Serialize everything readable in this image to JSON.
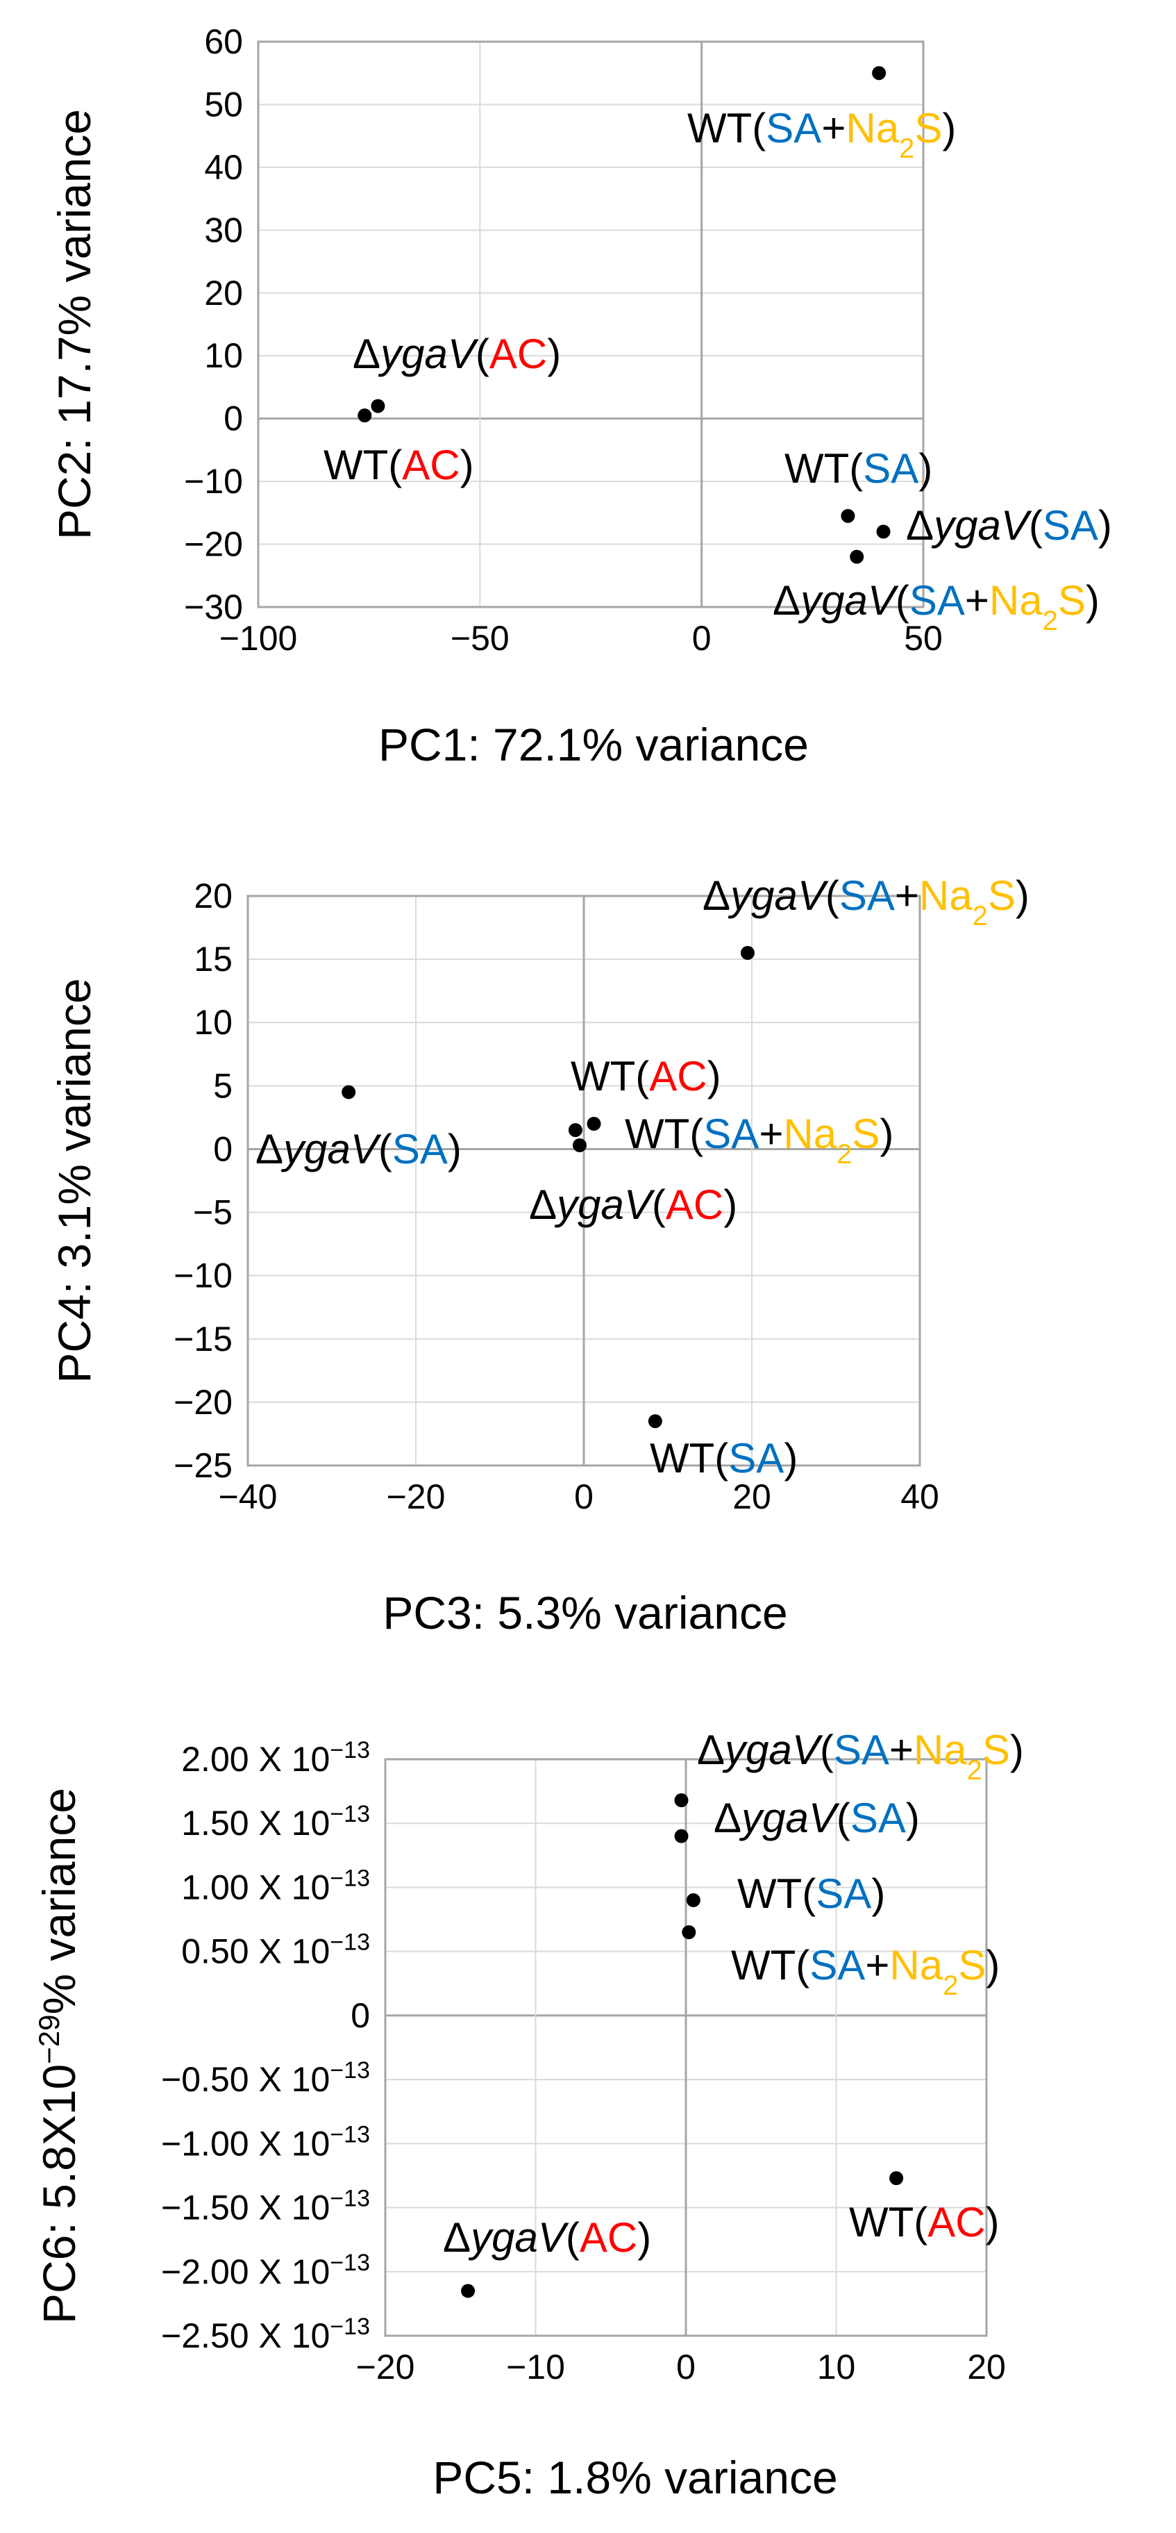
{
  "chart_data": [
    {
      "type": "scatter",
      "xlabel": "PC1: 72.1% variance",
      "ylabel": "PC2: 17.7% variance",
      "xlim": [
        -100,
        50
      ],
      "ylim": [
        -30,
        60
      ],
      "x_ticks": [
        "−100",
        "−50",
        "0",
        "50"
      ],
      "y_ticks": [
        "60",
        "50",
        "40",
        "30",
        "20",
        "10",
        "0",
        "−10",
        "−20",
        "−30"
      ],
      "points": [
        {
          "sample": "WT(SA+Na2S)",
          "x": 40,
          "y": 55
        },
        {
          "sample": "ΔygaV(AC)",
          "x": -73,
          "y": 2
        },
        {
          "sample": "WT(AC)",
          "x": -76,
          "y": 0.5
        },
        {
          "sample": "WT(SA)",
          "x": 33,
          "y": -15.5
        },
        {
          "sample": "ΔygaV(SA)",
          "x": 41,
          "y": -18
        },
        {
          "sample": "ΔygaV(SA+Na2S)",
          "x": 35,
          "y": -22
        }
      ]
    },
    {
      "type": "scatter",
      "xlabel": "PC3: 5.3% variance",
      "ylabel": "PC4: 3.1% variance",
      "xlim": [
        -40,
        40
      ],
      "ylim": [
        -25,
        20
      ],
      "x_ticks": [
        "−40",
        "−20",
        "0",
        "20",
        "40"
      ],
      "y_ticks": [
        "20",
        "15",
        "10",
        "5",
        "0",
        "−5",
        "−10",
        "−15",
        "−20",
        "−25"
      ],
      "points": [
        {
          "sample": "ΔygaV(SA+Na2S)",
          "x": 19.5,
          "y": 15.5
        },
        {
          "sample": "ΔygaV(SA)",
          "x": -28,
          "y": 4.5
        },
        {
          "sample": "WT(AC)",
          "x": -1,
          "y": 1.5
        },
        {
          "sample": "WT(SA+Na2S)",
          "x": 1.2,
          "y": 2
        },
        {
          "sample": "ΔygaV(AC)",
          "x": -0.5,
          "y": 0.3
        },
        {
          "sample": "WT(SA)",
          "x": 8.5,
          "y": -21.5
        }
      ]
    },
    {
      "type": "scatter",
      "xlabel": "PC5: 1.8% variance",
      "ylabel_parts": {
        "pre": "PC6: 5.8X10",
        "sup": "−29",
        "post": "% variance"
      },
      "xlim": [
        -20,
        20
      ],
      "ylim": [
        -2.5e-13,
        2e-13
      ],
      "x_ticks": [
        "−20",
        "−10",
        "0",
        "10",
        "20"
      ],
      "y_ticks": [
        {
          "mant": "2.00 X 10",
          "exp": "−13"
        },
        {
          "mant": "1.50 X 10",
          "exp": "−13"
        },
        {
          "mant": "1.00 X 10",
          "exp": "−13"
        },
        {
          "mant": "0.50 X 10",
          "exp": "−13"
        },
        {
          "mant": "0",
          "exp": ""
        },
        {
          "mant": "−0.50 X 10",
          "exp": "−13"
        },
        {
          "mant": "−1.00 X 10",
          "exp": "−13"
        },
        {
          "mant": "−1.50 X 10",
          "exp": "−13"
        },
        {
          "mant": "−2.00 X 10",
          "exp": "−13"
        },
        {
          "mant": "−2.50 X 10",
          "exp": "−13"
        }
      ],
      "points": [
        {
          "sample": "ΔygaV(SA+Na2S)",
          "x": -0.3,
          "y": 1.68e-13
        },
        {
          "sample": "ΔygaV(SA)",
          "x": -0.3,
          "y": 1.4e-13
        },
        {
          "sample": "WT(SA)",
          "x": 0.5,
          "y": 9e-14
        },
        {
          "sample": "WT(SA+Na2S)",
          "x": 0.2,
          "y": 6.5e-14
        },
        {
          "sample": "WT(AC)",
          "x": 14,
          "y": -1.27e-13
        },
        {
          "sample": "ΔygaV(AC)",
          "x": -14.5,
          "y": -2.15e-13
        }
      ]
    }
  ],
  "labels": {
    "delta": "Δ",
    "gene": "ygaV",
    "wt": "WT",
    "open": "(",
    "close": ")",
    "ac": "AC",
    "sa": "SA",
    "plus": "+",
    "na": "Na",
    "sub2": "2",
    "s": "S"
  },
  "colors": {
    "ac": "#ff0000",
    "sa": "#0070c0",
    "na2s": "#ffc000",
    "grid": "#d9d9d9",
    "frame": "#a6a6a6"
  }
}
